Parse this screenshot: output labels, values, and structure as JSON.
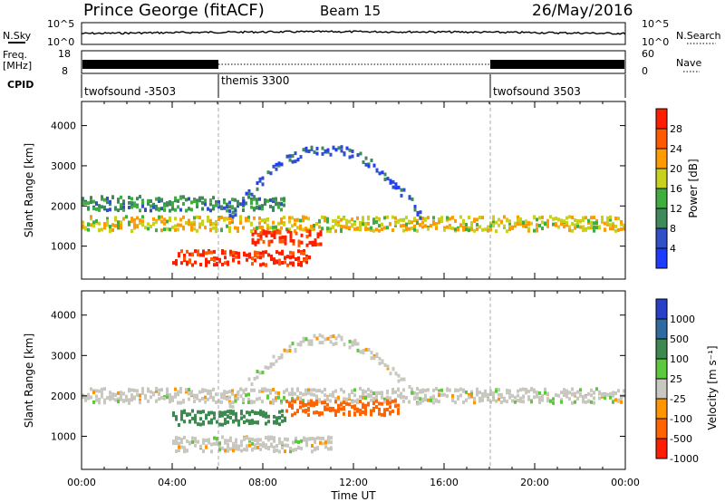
{
  "header": {
    "station": "Prince George (fitACF)",
    "beam": "Beam 15",
    "date": "26/May/2016"
  },
  "top_panels": {
    "nsky_label": "N.Sky",
    "nsearch_label": "N.Search",
    "freq_label": "Freq.",
    "freq_unit": "[MHz]",
    "nave_label": "Nave",
    "cpid_label": "CPID",
    "noise_ticks_left": [
      "10^5",
      "10^0"
    ],
    "noise_ticks_right": [
      "10^5",
      "10^0"
    ],
    "freq_ticks": [
      "18",
      "8"
    ],
    "nave_ticks": [
      "60",
      "0"
    ],
    "cpid_segments": [
      {
        "name": "twofsound -3503",
        "start": 0,
        "end": 6
      },
      {
        "name": "themis 3300",
        "start": 6,
        "end": 18
      },
      {
        "name": "twofsound 3503",
        "start": 18,
        "end": 24
      }
    ]
  },
  "x_axis": {
    "ticks": [
      "00:00",
      "04:00",
      "08:00",
      "12:00",
      "16:00",
      "20:00",
      "00:00"
    ],
    "label": "Time UT",
    "range_hours": [
      0,
      24
    ]
  },
  "y_axis": {
    "label": "Slant Range [km]",
    "ticks": [
      "1000",
      "2000",
      "3000",
      "4000"
    ],
    "range_km": [
      180,
      4600
    ]
  },
  "power_colorbar": {
    "label": "Power [dB]",
    "ticks": [
      "4",
      "8",
      "12",
      "16",
      "20",
      "24",
      "28"
    ],
    "colors": [
      "#1e3cff",
      "#2f50c8",
      "#3f8a5a",
      "#3fae3f",
      "#c8d21e",
      "#ff9b00",
      "#ff5a00",
      "#ff1e00"
    ]
  },
  "velocity_colorbar": {
    "label": "Velocity [m s⁻¹]",
    "ticks": [
      "1000",
      "500",
      "100",
      "25",
      "-25",
      "-100",
      "-500",
      "-1000"
    ],
    "colors": [
      "#2840c8",
      "#2f6aa0",
      "#3c8a50",
      "#5cc83c",
      "#c8c8c0",
      "#ff9600",
      "#ff6400",
      "#ff1e00"
    ]
  },
  "chart_data": {
    "type": "heatmap",
    "title": "Prince George (fitACF) Beam 15 26/May/2016",
    "xlabel": "Time UT",
    "ylabel": "Slant Range [km]",
    "xlim": [
      0,
      24
    ],
    "ylim": [
      180,
      4600
    ],
    "panels": [
      {
        "name": "Power",
        "unit": "dB",
        "scale": [
          0,
          30
        ],
        "features": [
          {
            "desc": "band",
            "time_start": 0,
            "time_end": 24,
            "range_km": 1550,
            "value_db": 18
          },
          {
            "desc": "band",
            "time_start": 0,
            "time_end": 9,
            "range_km": 2050,
            "value_db": 10
          },
          {
            "desc": "band",
            "time_start": 4,
            "time_end": 10,
            "range_km": 700,
            "value_db": 28
          },
          {
            "desc": "band",
            "time_start": 7.5,
            "time_end": 10.5,
            "range_km": 1200,
            "value_db": 28
          },
          {
            "desc": "arc",
            "time_start": 6.5,
            "time_end": 15,
            "range_km": 3400,
            "value_db": 6
          }
        ]
      },
      {
        "name": "Velocity",
        "unit": "m s-1",
        "scale": [
          -1000,
          1000
        ],
        "features": [
          {
            "desc": "band",
            "time_start": 0,
            "time_end": 24,
            "range_km": 2000,
            "value_ms": 0
          },
          {
            "desc": "band",
            "time_start": 4,
            "time_end": 11,
            "range_km": 800,
            "value_ms": 0
          },
          {
            "desc": "patch",
            "time_start": 4,
            "time_end": 9,
            "range_km": 1450,
            "value_ms": 150
          },
          {
            "desc": "patch",
            "time_start": 9,
            "time_end": 14,
            "range_km": 1700,
            "value_ms": -300
          },
          {
            "desc": "arc",
            "time_start": 6.5,
            "time_end": 15,
            "range_km": 3400,
            "value_ms": 0
          }
        ]
      }
    ]
  }
}
